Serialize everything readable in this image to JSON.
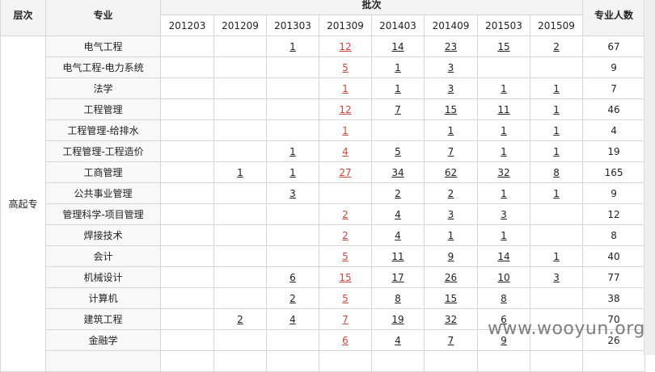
{
  "header": {
    "level": "层次",
    "major": "专业",
    "batch": "批次",
    "total": "专业人数",
    "batches": [
      "201203",
      "201209",
      "201303",
      "201309",
      "201403",
      "201409",
      "201503",
      "201509"
    ]
  },
  "level": "高起专",
  "highlight_column": 3,
  "highlight_color": "#d0453b",
  "rows": [
    {
      "major": "电气工程",
      "cells": [
        "",
        "",
        "1",
        "12",
        "14",
        "23",
        "15",
        "2"
      ],
      "total": "67"
    },
    {
      "major": "电气工程-电力系统",
      "cells": [
        "",
        "",
        "",
        "5",
        "1",
        "3",
        "",
        ""
      ],
      "total": "9"
    },
    {
      "major": "法学",
      "cells": [
        "",
        "",
        "",
        "1",
        "1",
        "3",
        "1",
        "1"
      ],
      "total": "7"
    },
    {
      "major": "工程管理",
      "cells": [
        "",
        "",
        "",
        "12",
        "7",
        "15",
        "11",
        "1"
      ],
      "total": "46"
    },
    {
      "major": "工程管理-给排水",
      "cells": [
        "",
        "",
        "",
        "1",
        "",
        "1",
        "1",
        "1"
      ],
      "total": "4"
    },
    {
      "major": "工程管理-工程造价",
      "cells": [
        "",
        "",
        "1",
        "4",
        "5",
        "7",
        "1",
        "1"
      ],
      "total": "19"
    },
    {
      "major": "工商管理",
      "cells": [
        "",
        "1",
        "1",
        "27",
        "34",
        "62",
        "32",
        "8"
      ],
      "total": "165"
    },
    {
      "major": "公共事业管理",
      "cells": [
        "",
        "",
        "3",
        "",
        "2",
        "2",
        "1",
        "1"
      ],
      "total": "9"
    },
    {
      "major": "管理科学-项目管理",
      "cells": [
        "",
        "",
        "",
        "2",
        "4",
        "3",
        "3",
        ""
      ],
      "total": "12"
    },
    {
      "major": "焊接技术",
      "cells": [
        "",
        "",
        "",
        "2",
        "4",
        "1",
        "1",
        ""
      ],
      "total": "8"
    },
    {
      "major": "会计",
      "cells": [
        "",
        "",
        "",
        "5",
        "11",
        "9",
        "14",
        "1"
      ],
      "total": "40"
    },
    {
      "major": "机械设计",
      "cells": [
        "",
        "",
        "6",
        "15",
        "17",
        "26",
        "10",
        "3"
      ],
      "total": "77"
    },
    {
      "major": "计算机",
      "cells": [
        "",
        "",
        "2",
        "5",
        "8",
        "15",
        "8",
        ""
      ],
      "total": "38"
    },
    {
      "major": "建筑工程",
      "cells": [
        "",
        "2",
        "4",
        "7",
        "19",
        "32",
        "6",
        ""
      ],
      "total": "70"
    },
    {
      "major": "金融学",
      "cells": [
        "",
        "",
        "",
        "6",
        "4",
        "7",
        "9",
        ""
      ],
      "total": "26"
    }
  ],
  "watermark": "www.wooyun.org"
}
